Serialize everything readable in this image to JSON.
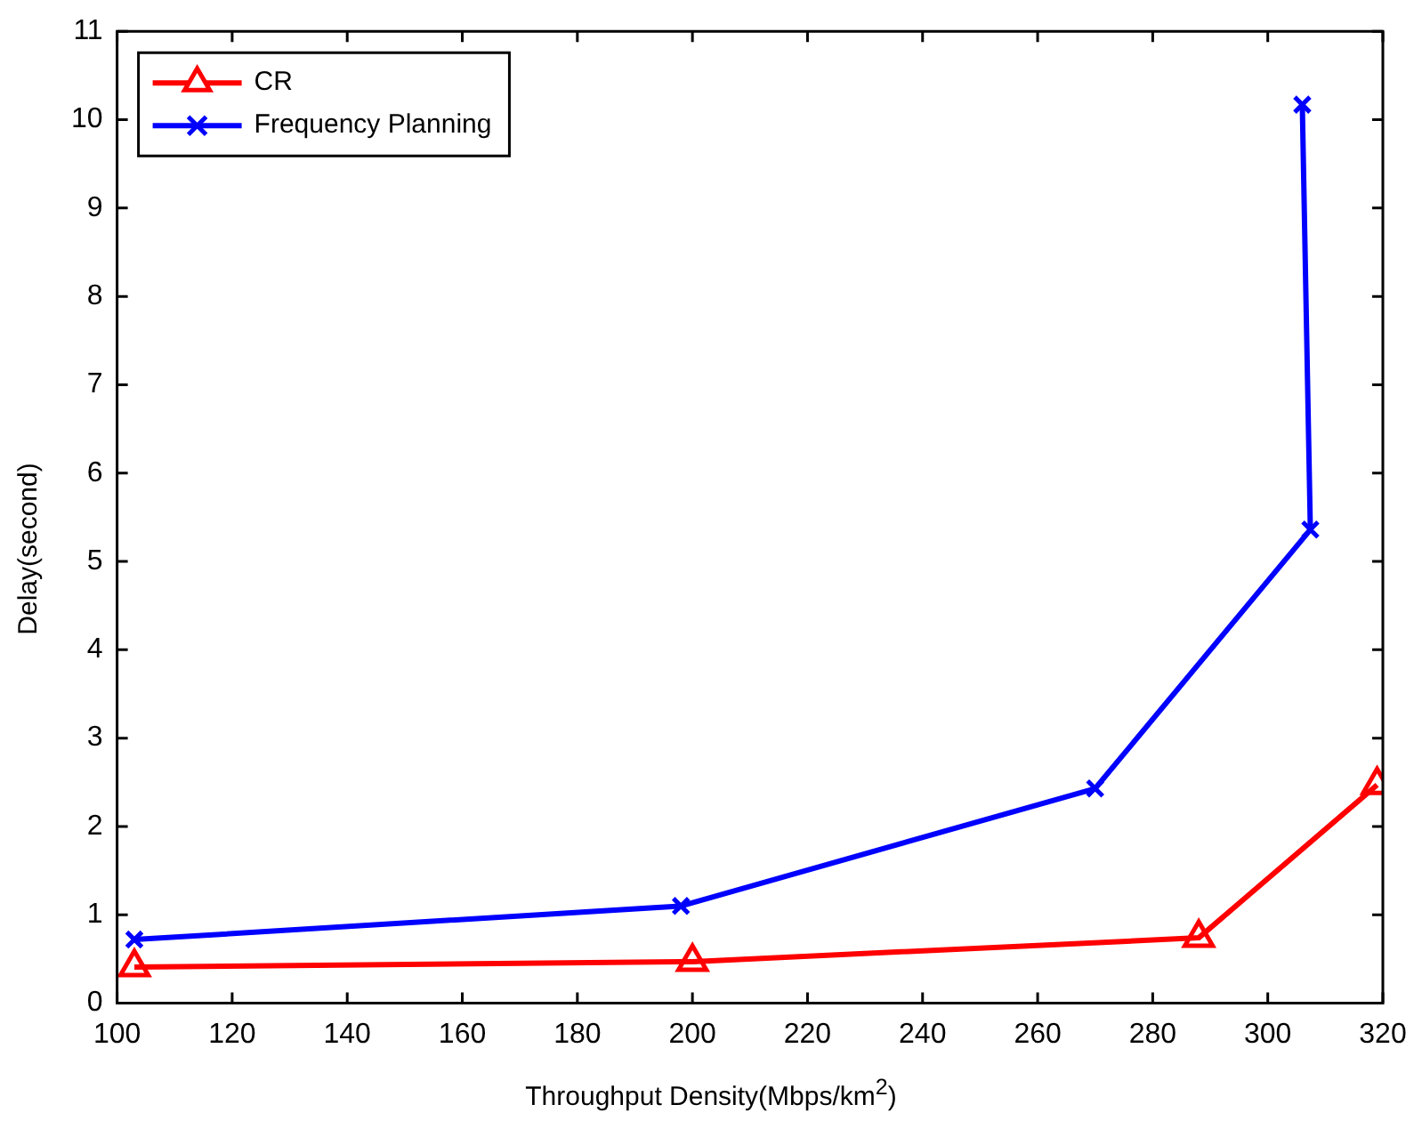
{
  "chart_data": {
    "type": "line",
    "xlabel": "Throughput Density(Mbps/km$^{2}$)",
    "ylabel": "Delay(second)",
    "xlim": [
      100,
      320
    ],
    "xticks": [
      100,
      120,
      140,
      160,
      180,
      200,
      220,
      240,
      260,
      280,
      300,
      320
    ],
    "ylim": [
      0,
      11
    ],
    "yticks": [
      0,
      1,
      2,
      3,
      4,
      5,
      6,
      7,
      8,
      9,
      10,
      11
    ],
    "grid": false,
    "legend": "top left",
    "series": [
      {
        "name": "CR",
        "color": "#ff0000",
        "marker": "triangle",
        "x": [
          103,
          200,
          288,
          319
        ],
        "values": [
          0.41,
          0.47,
          0.74,
          2.47
        ]
      },
      {
        "name": "Frequency Planning",
        "color": "#0000ff",
        "marker": "cross",
        "x": [
          103,
          198,
          270,
          307.4,
          306
        ],
        "values": [
          0.72,
          1.1,
          2.43,
          5.36,
          10.17
        ]
      }
    ]
  }
}
